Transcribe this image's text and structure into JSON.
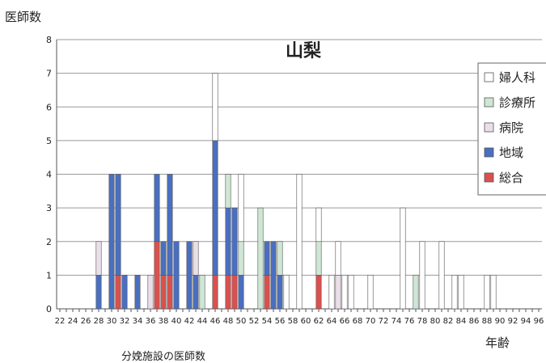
{
  "chart_data": {
    "type": "bar",
    "stacked": true,
    "title": "山梨",
    "ylabel": "医師数",
    "xlabel": "年齢",
    "footnote": "分娩施設の医師数",
    "ylim": [
      0,
      8
    ],
    "yticks": [
      0,
      1,
      2,
      3,
      4,
      5,
      6,
      7,
      8
    ],
    "xticks": [
      22,
      24,
      26,
      28,
      30,
      32,
      34,
      36,
      38,
      40,
      42,
      44,
      46,
      48,
      50,
      52,
      54,
      56,
      58,
      60,
      62,
      64,
      66,
      68,
      70,
      72,
      74,
      76,
      78,
      80,
      82,
      84,
      86,
      88,
      90,
      92,
      94,
      96
    ],
    "x": [
      22,
      23,
      24,
      25,
      26,
      27,
      28,
      29,
      30,
      31,
      32,
      33,
      34,
      35,
      36,
      37,
      38,
      39,
      40,
      41,
      42,
      43,
      44,
      45,
      46,
      47,
      48,
      49,
      50,
      51,
      52,
      53,
      54,
      55,
      56,
      57,
      58,
      59,
      60,
      61,
      62,
      63,
      64,
      65,
      66,
      67,
      68,
      69,
      70,
      71,
      72,
      73,
      74,
      75,
      76,
      77,
      78,
      79,
      80,
      81,
      82,
      83,
      84,
      85,
      86,
      87,
      88,
      89,
      90,
      91,
      92,
      93,
      94,
      95,
      96
    ],
    "grid": true,
    "legend_position": "right",
    "series": [
      {
        "name": "総合",
        "color": "#d9514e",
        "values": [
          0,
          0,
          0,
          0,
          0,
          0,
          0,
          0,
          0,
          1,
          0,
          0,
          0,
          0,
          0,
          2,
          1,
          1,
          0,
          0,
          0,
          0,
          0,
          0,
          1,
          0,
          1,
          1,
          0,
          0,
          0,
          0,
          1,
          0,
          0,
          0,
          0,
          0,
          0,
          0,
          1,
          0,
          0,
          0,
          0,
          0,
          0,
          0,
          0,
          0,
          0,
          0,
          0,
          0,
          0,
          0,
          0,
          0,
          0,
          0,
          0,
          0,
          0,
          0,
          0,
          0,
          0,
          0,
          0,
          0,
          0,
          0,
          0,
          0,
          0
        ]
      },
      {
        "name": "地域",
        "color": "#4a6fc0",
        "values": [
          0,
          0,
          0,
          0,
          0,
          0,
          1,
          0,
          4,
          3,
          1,
          0,
          1,
          0,
          0,
          2,
          1,
          3,
          2,
          0,
          2,
          1,
          0,
          0,
          4,
          0,
          2,
          2,
          1,
          0,
          0,
          0,
          1,
          2,
          1,
          0,
          0,
          0,
          0,
          0,
          0,
          0,
          0,
          0,
          0,
          0,
          0,
          0,
          0,
          0,
          0,
          0,
          0,
          0,
          0,
          0,
          0,
          0,
          0,
          0,
          0,
          0,
          0,
          0,
          0,
          0,
          0,
          0,
          0,
          0,
          0,
          0,
          0,
          0,
          0
        ]
      },
      {
        "name": "病院",
        "color": "#eadfe9",
        "values": [
          0,
          0,
          0,
          0,
          0,
          0,
          1,
          0,
          0,
          0,
          0,
          0,
          0,
          0,
          1,
          0,
          0,
          0,
          0,
          0,
          0,
          1,
          0,
          0,
          0,
          0,
          0,
          0,
          0,
          0,
          0,
          0,
          0,
          0,
          0,
          0,
          0,
          0,
          0,
          0,
          0,
          0,
          0,
          1,
          0,
          0,
          0,
          0,
          0,
          0,
          0,
          0,
          0,
          0,
          0,
          0,
          0,
          0,
          0,
          0,
          0,
          0,
          0,
          0,
          0,
          0,
          0,
          0,
          0,
          0,
          0,
          0,
          0,
          0,
          0
        ]
      },
      {
        "name": "診療所",
        "color": "#cfe6d4",
        "values": [
          0,
          0,
          0,
          0,
          0,
          0,
          0,
          0,
          0,
          0,
          0,
          0,
          0,
          0,
          0,
          0,
          0,
          0,
          0,
          0,
          0,
          0,
          1,
          0,
          0,
          0,
          1,
          0,
          1,
          0,
          0,
          3,
          0,
          0,
          1,
          0,
          0,
          0,
          0,
          0,
          1,
          0,
          0,
          0,
          0,
          0,
          0,
          0,
          0,
          0,
          0,
          0,
          0,
          0,
          0,
          1,
          0,
          0,
          0,
          0,
          0,
          0,
          0,
          0,
          0,
          0,
          0,
          0,
          0,
          0,
          0,
          0,
          0,
          0,
          0
        ]
      },
      {
        "name": "婦人科",
        "color": "#ffffff",
        "values": [
          0,
          0,
          0,
          0,
          0,
          0,
          0,
          0,
          0,
          0,
          0,
          0,
          0,
          0,
          0,
          0,
          0,
          0,
          0,
          0,
          0,
          0,
          0,
          0,
          2,
          0,
          0,
          0,
          2,
          0,
          0,
          0,
          0,
          0,
          0,
          1,
          0,
          4,
          0,
          0,
          1,
          0,
          1,
          1,
          1,
          1,
          0,
          0,
          1,
          0,
          0,
          0,
          0,
          3,
          0,
          0,
          2,
          0,
          0,
          2,
          0,
          1,
          1,
          0,
          0,
          0,
          1,
          1,
          0,
          0,
          0,
          0,
          0,
          0,
          0
        ]
      }
    ],
    "legend_order": [
      "婦人科",
      "診療所",
      "病院",
      "地域",
      "総合"
    ]
  }
}
